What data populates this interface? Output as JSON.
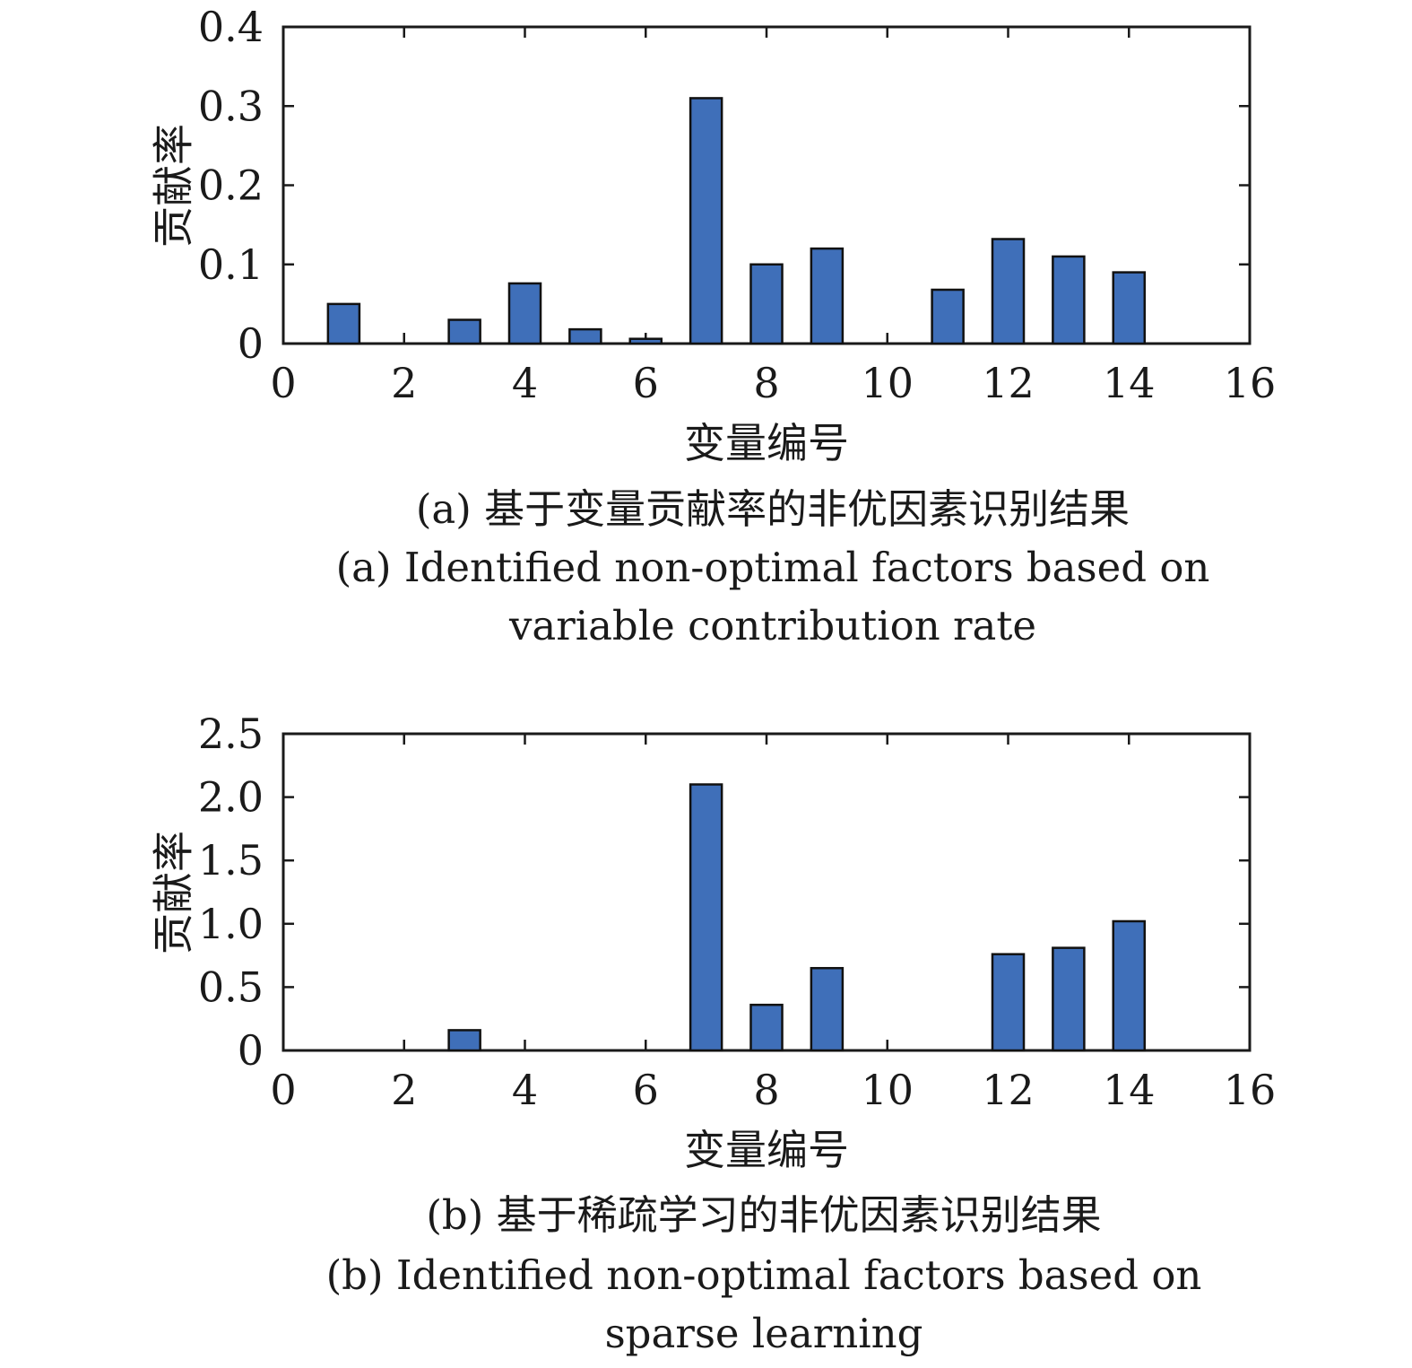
{
  "chart_data": [
    {
      "type": "bar",
      "x": [
        1,
        3,
        4,
        5,
        6,
        7,
        8,
        9,
        11,
        12,
        13,
        14
      ],
      "values": [
        0.05,
        0.03,
        0.076,
        0.018,
        0.006,
        0.31,
        0.1,
        0.12,
        0.068,
        0.132,
        0.11,
        0.09
      ],
      "xlabel": "变量编号",
      "ylabel": "贡献率",
      "xlim": [
        0,
        16
      ],
      "ylim": [
        0,
        0.4
      ],
      "xticks": [
        "0",
        "2",
        "4",
        "6",
        "8",
        "10",
        "12",
        "14",
        "16"
      ],
      "yticks": [
        "0",
        "0.1",
        "0.2",
        "0.3",
        "0.4"
      ],
      "caption_cn": "(a) 基于变量贡献率的非优因素识别结果",
      "caption_en": [
        "(a) Identified non-optimal factors based on",
        "variable contribution rate"
      ],
      "bar_color": "#3f6fb9"
    },
    {
      "type": "bar",
      "x": [
        3,
        7,
        8,
        9,
        12,
        13,
        14
      ],
      "values": [
        0.16,
        2.1,
        0.36,
        0.65,
        0.76,
        0.81,
        1.02
      ],
      "xlabel": "变量编号",
      "ylabel": "贡献率",
      "xlim": [
        0,
        16
      ],
      "ylim": [
        0,
        2.5
      ],
      "xticks": [
        "0",
        "2",
        "4",
        "6",
        "8",
        "10",
        "12",
        "14",
        "16"
      ],
      "yticks": [
        "0",
        "0.5",
        "1.0",
        "1.5",
        "2.0",
        "2.5"
      ],
      "caption_cn": "(b) 基于稀疏学习的非优因素识别结果",
      "caption_en": [
        "(b) Identified non-optimal factors based on",
        "sparse learning"
      ],
      "bar_color": "#3f6fb9"
    }
  ]
}
